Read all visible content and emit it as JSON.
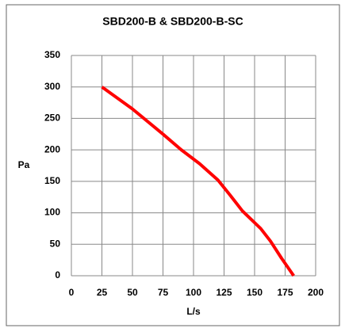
{
  "chart_data": {
    "type": "line",
    "title": "SBD200-B & SBD200-B-SC",
    "x_label": "L/s",
    "y_label": "Pa",
    "x": [
      25,
      50,
      75,
      90,
      105,
      120,
      130,
      140,
      155,
      163,
      172,
      182
    ],
    "series": [
      {
        "name": "SBD200-B",
        "color": "#ff0000",
        "values": [
          300,
          265,
          225,
          200,
          178,
          152,
          128,
          103,
          75,
          55,
          28,
          0
        ]
      }
    ],
    "xlim": [
      0,
      200
    ],
    "xticks": [
      0,
      25,
      50,
      75,
      100,
      125,
      150,
      175,
      200
    ],
    "ylim": [
      0,
      350
    ],
    "yticks": [
      0,
      50,
      100,
      150,
      200,
      250,
      300,
      350
    ],
    "grid": true
  }
}
